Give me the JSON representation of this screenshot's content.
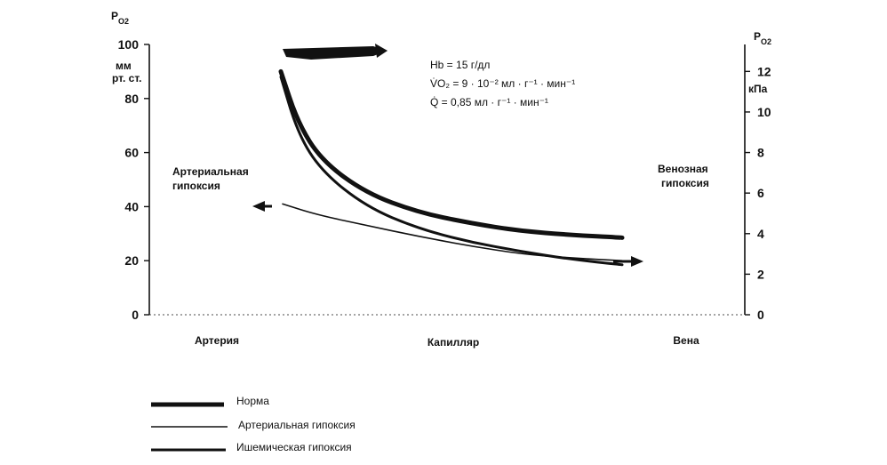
{
  "chart_data": {
    "type": "line",
    "left_axis": {
      "title_main": "P",
      "title_sub": "O2",
      "unit_line1": "мм",
      "unit_line2": "рт. ст.",
      "ylim": [
        0,
        100
      ],
      "ticks": [
        0,
        20,
        40,
        60,
        80,
        100
      ],
      "tick_labels": [
        "0",
        "20",
        "40",
        "60",
        "80",
        "100"
      ]
    },
    "right_axis": {
      "title_main": "P",
      "title_sub": "O2",
      "unit": "кПа",
      "ylim": [
        0,
        13.33
      ],
      "ticks": [
        0,
        2,
        4,
        6,
        8,
        10,
        12
      ],
      "tick_labels": [
        "0",
        "2",
        "4",
        "6",
        "8",
        "10",
        "12"
      ]
    },
    "x_categories": [
      "Артерия",
      "Капилляр",
      "Вена"
    ],
    "xlim": [
      0,
      1
    ],
    "annotations": {
      "left": [
        "Артериальная",
        "гипоксия"
      ],
      "right": [
        "Венозная",
        "гипоксия"
      ],
      "params": [
        "Hb = 15 г/дл",
        "V̇O₂ = 9 · 10⁻² мл · г⁻¹ · мин⁻¹",
        "Q̇ = 0,85 мл · г⁻¹ · мин⁻¹"
      ]
    },
    "series": [
      {
        "name": "Норма",
        "line_width": 5,
        "x": [
          0,
          0.05,
          0.12,
          0.25,
          0.4,
          0.55,
          0.7,
          0.85,
          1
        ],
        "y": [
          90,
          71,
          57,
          45,
          38,
          34,
          31,
          29.5,
          28.5
        ]
      },
      {
        "name": "Артериальная гипоксия",
        "line_width": 1.6,
        "x": [
          0,
          0.1,
          0.25,
          0.4,
          0.55,
          0.7,
          0.85,
          1
        ],
        "y": [
          41,
          37,
          33,
          29,
          25.5,
          22.5,
          21,
          20
        ]
      },
      {
        "name": "Ишемическая гипоксия",
        "line_width": 3,
        "x": [
          0,
          0.05,
          0.12,
          0.25,
          0.4,
          0.55,
          0.7,
          0.85,
          1
        ],
        "y": [
          88,
          67,
          53,
          40,
          32,
          27,
          23.5,
          20.5,
          18.5
        ]
      }
    ],
    "grid": false
  }
}
